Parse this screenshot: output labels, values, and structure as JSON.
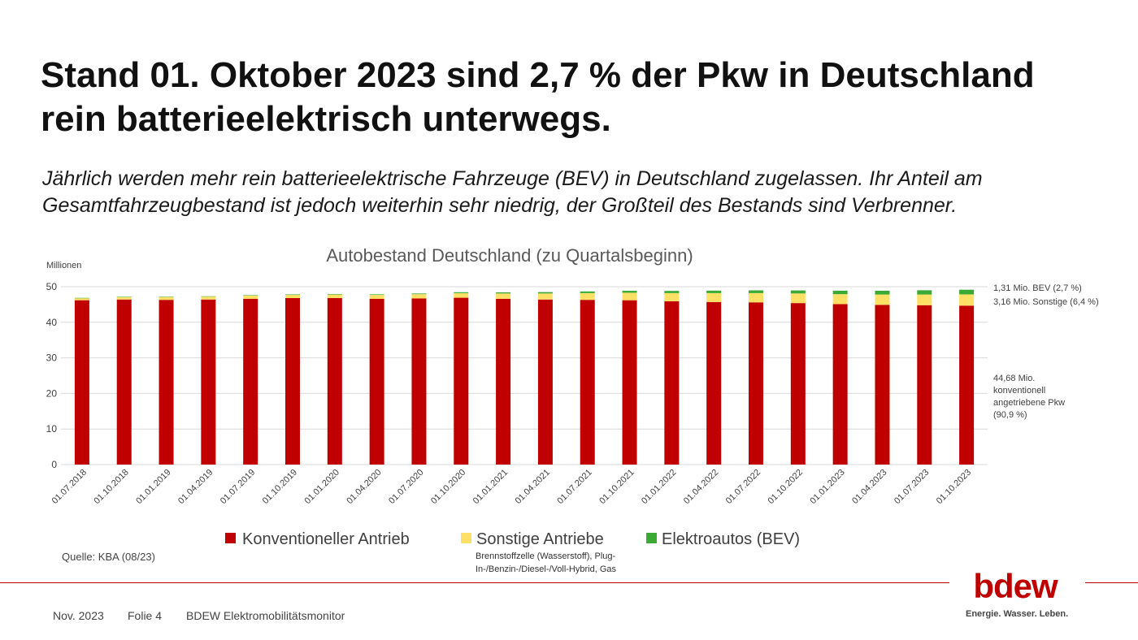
{
  "slide": {
    "headline": "Stand 01. Oktober 2023 sind 2,7 % der Pkw in Deutschland rein batterieelektrisch unterwegs.",
    "subline": "Jährlich werden mehr rein batterieelektrische Fahrzeuge (BEV) in Deutschland zugelassen. Ihr Anteil am Gesamtfahrzeugbestand ist jedoch weiterhin sehr niedrig, der Großteil des Bestands sind Verbrenner.",
    "source": "Quelle: KBA (08/23)"
  },
  "footer": {
    "date": "Nov. 2023",
    "slide_no": "Folie 4",
    "report": "BDEW Elektromobilitätsmonitor"
  },
  "logo": {
    "wordmark": "bdew",
    "tagline": "Energie. Wasser. Leben."
  },
  "colors": {
    "conventional": "#c00000",
    "other": "#ffe066",
    "bev": "#3aaa35",
    "accent": "#c00000"
  },
  "chart_data": {
    "type": "bar",
    "stacked": true,
    "title": "Autobestand Deutschland (zu Quartalsbeginn)",
    "ylabel": "Millionen",
    "xlabel": "",
    "ylim": [
      0,
      50
    ],
    "yticks": [
      "0",
      "10",
      "20",
      "30",
      "40",
      "50"
    ],
    "grid": true,
    "legend_position": "bottom",
    "categories": [
      "01.07.2018",
      "01.10.2018",
      "01.01.2019",
      "01.04.2019",
      "01.07.2019",
      "01.10.2019",
      "01.01.2020",
      "01.04.2020",
      "01.07.2020",
      "01.10.2020",
      "01.01.2021",
      "01.04.2021",
      "01.07.2021",
      "01.10.2021",
      "01.01.2022",
      "01.04.2022",
      "01.07.2022",
      "01.10.2022",
      "01.01.2023",
      "01.04.2023",
      "01.07.2023",
      "01.10.2023"
    ],
    "series": [
      {
        "name": "Konventioneller Antrieb",
        "color": "#c00000",
        "values": [
          46.2,
          46.4,
          46.3,
          46.4,
          46.6,
          46.8,
          46.8,
          46.6,
          46.7,
          46.9,
          46.6,
          46.4,
          46.3,
          46.2,
          45.9,
          45.7,
          45.6,
          45.4,
          45.1,
          44.9,
          44.8,
          44.68
        ]
      },
      {
        "name": "Sonstige Antriebe",
        "color": "#ffe066",
        "values": [
          0.6,
          0.7,
          0.8,
          0.8,
          0.9,
          0.9,
          1.0,
          1.1,
          1.2,
          1.3,
          1.5,
          1.7,
          1.9,
          2.1,
          2.3,
          2.5,
          2.6,
          2.7,
          2.8,
          2.9,
          3.0,
          3.16
        ]
      },
      {
        "name": "Elektroautos (BEV)",
        "color": "#3aaa35",
        "values": [
          0.06,
          0.08,
          0.09,
          0.11,
          0.12,
          0.14,
          0.14,
          0.16,
          0.19,
          0.25,
          0.31,
          0.38,
          0.47,
          0.55,
          0.62,
          0.69,
          0.77,
          0.85,
          0.98,
          1.07,
          1.2,
          1.31
        ]
      }
    ],
    "legend_note": "Brennstoffzelle (Wasserstoff), Plug-In-/Benzin-/Diesel-/Voll-Hybrid, Gas",
    "annotations": {
      "bev": "1,31 Mio. BEV (2,7 %)",
      "other": "3,16 Mio. Sonstige (6,4 %)",
      "conventional": [
        "44,68 Mio.",
        "konventionell",
        "angetriebene Pkw",
        "(90,9 %)"
      ]
    }
  }
}
